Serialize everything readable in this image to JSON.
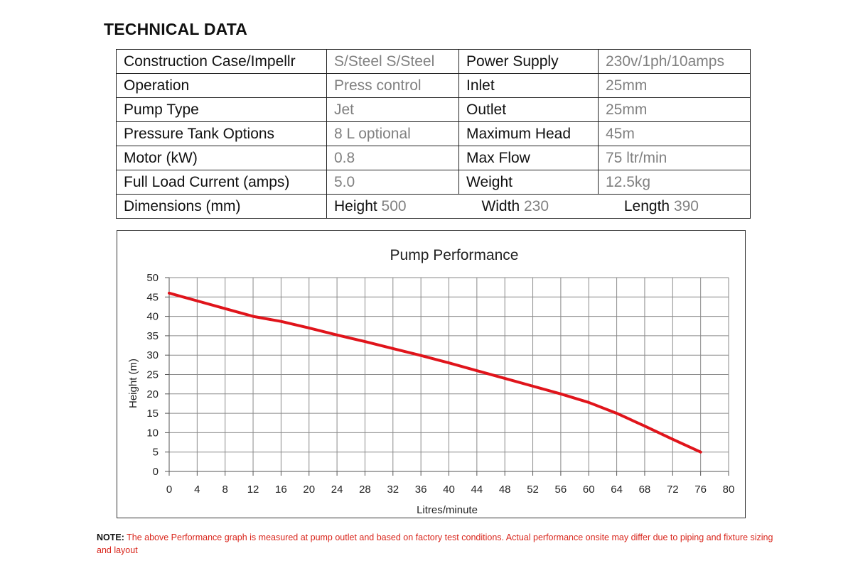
{
  "heading": "TECHNICAL DATA",
  "specs": [
    {
      "label": "Construction Case/Impellr",
      "value": "S/Steel S/Steel",
      "label2": "Power Supply",
      "value2": "230v/1ph/10amps"
    },
    {
      "label": "Operation",
      "value": "Press control",
      "label2": "Inlet",
      "value2": "25mm"
    },
    {
      "label": "Pump Type",
      "value": "Jet",
      "label2": "Outlet",
      "value2": "25mm"
    },
    {
      "label": "Pressure Tank Options",
      "value": "8 L optional",
      "label2": "Maximum Head",
      "value2": "45m"
    },
    {
      "label": "Motor  (kW)",
      "value": "0.8",
      "label2": "Max Flow",
      "value2": "75 ltr/min"
    },
    {
      "label": "Full Load Current (amps)",
      "value": "5.0",
      "label2": "Weight",
      "value2": "12.5kg"
    }
  ],
  "dimensions": {
    "label": "Dimensions (mm)",
    "height_label": "Height",
    "height_value": "500",
    "width_label": "Width",
    "width_value": "230",
    "length_label": "Length",
    "length_value": "390"
  },
  "chart_data": {
    "type": "line",
    "title": "Pump Performance",
    "xlabel": "Litres/minute",
    "ylabel": "Height (m)",
    "xlim": [
      0,
      80
    ],
    "ylim": [
      0,
      50
    ],
    "xticks": [
      0,
      4,
      8,
      12,
      16,
      20,
      24,
      28,
      32,
      36,
      40,
      44,
      48,
      52,
      56,
      60,
      64,
      68,
      72,
      76,
      80
    ],
    "yticks": [
      0,
      5,
      10,
      15,
      20,
      25,
      30,
      35,
      40,
      45,
      50
    ],
    "grid": true,
    "line_color": "#e0141b",
    "x": [
      0,
      4,
      8,
      12,
      16,
      20,
      24,
      28,
      32,
      36,
      40,
      44,
      48,
      52,
      56,
      60,
      64,
      68,
      72,
      76
    ],
    "y": [
      46,
      44,
      42,
      40,
      38.7,
      37,
      35.2,
      33.5,
      31.7,
      29.9,
      28,
      26,
      24,
      22,
      20,
      17.8,
      15,
      11.7,
      8.3,
      5
    ]
  },
  "note": {
    "label": "NOTE:",
    "text": "The above Performance graph is measured at pump outlet and based on factory test conditions. Actual performance onsite may differ due to piping and fixture sizing and layout"
  }
}
